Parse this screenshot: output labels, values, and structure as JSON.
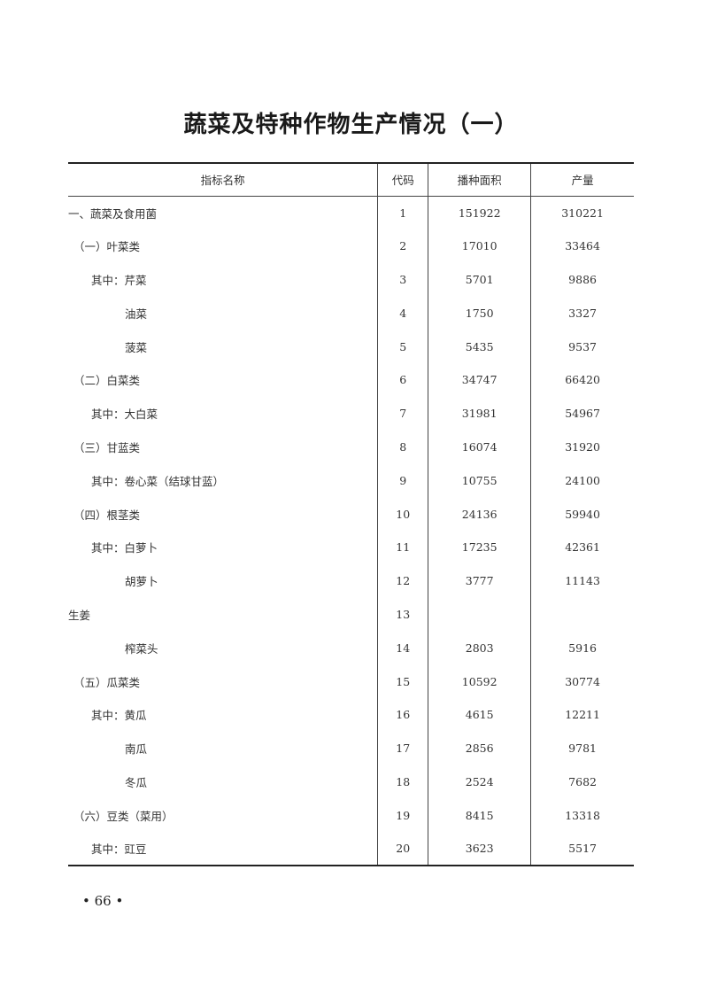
{
  "title": "蔬菜及特种作物生产情况（一）",
  "table": {
    "headers": [
      "指标名称",
      "代码",
      "播种面积",
      "产量"
    ],
    "rows": [
      {
        "name": "一、蔬菜及食用菌",
        "level": 0,
        "code": "1",
        "area": "151922",
        "output": "310221"
      },
      {
        "name": "（一）叶菜类",
        "level": 1,
        "code": "2",
        "area": "17010",
        "output": "33464"
      },
      {
        "name": "其中：芹菜",
        "level": 2,
        "code": "3",
        "area": "5701",
        "output": "9886"
      },
      {
        "name": "油菜",
        "level": 3,
        "code": "4",
        "area": "1750",
        "output": "3327"
      },
      {
        "name": "菠菜",
        "level": 3,
        "code": "5",
        "area": "5435",
        "output": "9537"
      },
      {
        "name": "（二）白菜类",
        "level": 1,
        "code": "6",
        "area": "34747",
        "output": "66420"
      },
      {
        "name": "其中：大白菜",
        "level": 2,
        "code": "7",
        "area": "31981",
        "output": "54967"
      },
      {
        "name": "（三）甘蓝类",
        "level": 1,
        "code": "8",
        "area": "16074",
        "output": "31920"
      },
      {
        "name": "其中：卷心菜（结球甘蓝）",
        "level": 2,
        "code": "9",
        "area": "10755",
        "output": "24100"
      },
      {
        "name": "（四）根茎类",
        "level": 1,
        "code": "10",
        "area": "24136",
        "output": "59940"
      },
      {
        "name": "其中：白萝卜",
        "level": 2,
        "code": "11",
        "area": "17235",
        "output": "42361"
      },
      {
        "name": "胡萝卜",
        "level": 3,
        "code": "12",
        "area": "3777",
        "output": "11143"
      },
      {
        "name": "生姜",
        "level": 0,
        "code": "13",
        "area": "",
        "output": ""
      },
      {
        "name": "榨菜头",
        "level": 3,
        "code": "14",
        "area": "2803",
        "output": "5916"
      },
      {
        "name": "（五）瓜菜类",
        "level": 1,
        "code": "15",
        "area": "10592",
        "output": "30774"
      },
      {
        "name": "其中：黄瓜",
        "level": 2,
        "code": "16",
        "area": "4615",
        "output": "12211"
      },
      {
        "name": "南瓜",
        "level": 3,
        "code": "17",
        "area": "2856",
        "output": "9781"
      },
      {
        "name": "冬瓜",
        "level": 3,
        "code": "18",
        "area": "2524",
        "output": "7682"
      },
      {
        "name": "（六）豆类（菜用）",
        "level": 1,
        "code": "19",
        "area": "8415",
        "output": "13318"
      },
      {
        "name": "其中：豇豆",
        "level": 2,
        "code": "20",
        "area": "3623",
        "output": "5517"
      }
    ]
  },
  "page_number": "• 66 •"
}
